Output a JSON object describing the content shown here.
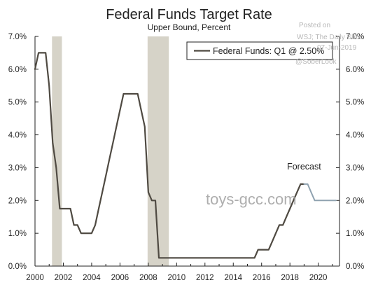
{
  "chart_data": {
    "type": "line",
    "title": "Federal Funds Target Rate",
    "subtitle": "Upper Bound, Percent",
    "xlim": [
      2000,
      2021.5
    ],
    "ylim": [
      0,
      7
    ],
    "x_ticks": [
      2000,
      2002,
      2004,
      2006,
      2008,
      2010,
      2012,
      2014,
      2016,
      2018,
      2020
    ],
    "x_tick_labels": [
      "2000",
      "2002",
      "2004",
      "2006",
      "2008",
      "2010",
      "2012",
      "2014",
      "2016",
      "2018",
      "2020"
    ],
    "y_ticks": [
      0,
      1,
      2,
      3,
      4,
      5,
      6,
      7
    ],
    "y_tick_labels": [
      "0.0%",
      "1.0%",
      "2.0%",
      "3.0%",
      "4.0%",
      "5.0%",
      "6.0%",
      "7.0%"
    ],
    "grid": false,
    "legend_position": "top-right",
    "recessions": [
      [
        2001.2,
        2001.9
      ],
      [
        2007.95,
        2009.45
      ]
    ],
    "series": [
      {
        "name": "Federal Funds: Q1 @ 2.50%",
        "color": "#4f4a42",
        "x": [
          2000.0,
          2000.25,
          2000.5,
          2000.75,
          2001.0,
          2001.25,
          2001.5,
          2001.75,
          2002.0,
          2002.25,
          2002.5,
          2002.75,
          2003.0,
          2003.25,
          2003.5,
          2003.75,
          2004.0,
          2004.25,
          2004.5,
          2004.75,
          2005.0,
          2005.25,
          2005.5,
          2005.75,
          2006.0,
          2006.25,
          2006.5,
          2006.75,
          2007.0,
          2007.25,
          2007.5,
          2007.75,
          2008.0,
          2008.25,
          2008.5,
          2008.75,
          2009.0,
          2015.5,
          2015.75,
          2016.0,
          2016.5,
          2016.75,
          2017.0,
          2017.25,
          2017.5,
          2017.75,
          2018.0,
          2018.25,
          2018.5,
          2018.75,
          2019.0
        ],
        "values": [
          6.0,
          6.5,
          6.5,
          6.5,
          5.5,
          3.75,
          3.0,
          1.75,
          1.75,
          1.75,
          1.75,
          1.25,
          1.25,
          1.0,
          1.0,
          1.0,
          1.0,
          1.25,
          1.75,
          2.25,
          2.75,
          3.25,
          3.75,
          4.25,
          4.75,
          5.25,
          5.25,
          5.25,
          5.25,
          5.25,
          4.75,
          4.25,
          2.25,
          2.0,
          2.0,
          0.25,
          0.25,
          0.25,
          0.5,
          0.5,
          0.5,
          0.75,
          1.0,
          1.25,
          1.25,
          1.5,
          1.75,
          2.0,
          2.25,
          2.5,
          2.5
        ]
      },
      {
        "name": "Forecast",
        "color": "#8fa2b0",
        "x": [
          2019.0,
          2019.25,
          2019.5,
          2019.75,
          2020.0,
          2020.5,
          2021.25
        ],
        "values": [
          2.5,
          2.5,
          2.25,
          2.0,
          2.0,
          2.0,
          2.0
        ]
      }
    ],
    "annotations": [
      {
        "text": "Forecast",
        "x": 2019.0,
        "y": 2.95
      }
    ]
  },
  "watermarks": {
    "posted_on": "Posted on",
    "source": "WSJ; The Daily Shot",
    "date": "07-Jun-2019",
    "handle": "@SoberLook",
    "site": "toys-gcc.com"
  }
}
